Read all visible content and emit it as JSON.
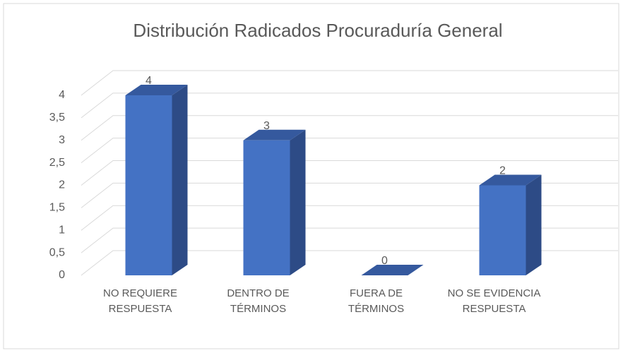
{
  "chart_data": {
    "type": "bar3d",
    "title": "Distribución Radicados Procuraduría General",
    "categories": [
      "NO REQUIERE RESPUESTA",
      "DENTRO DE TÉRMINOS",
      "FUERA DE TÉRMINOS",
      "NO SE EVIDENCIA RESPUESTA"
    ],
    "values": [
      4,
      3,
      0,
      2
    ],
    "color": "#4472c4",
    "ylim": [
      0,
      4
    ],
    "yticks": [
      0,
      {
        "value": 0.5,
        "label": "0,5"
      },
      1,
      {
        "value": 1.5,
        "label": "1,5"
      },
      2,
      {
        "value": 2.5,
        "label": "2,5"
      },
      3,
      {
        "value": 3.5,
        "label": "3,5"
      },
      4
    ],
    "grid": true
  }
}
